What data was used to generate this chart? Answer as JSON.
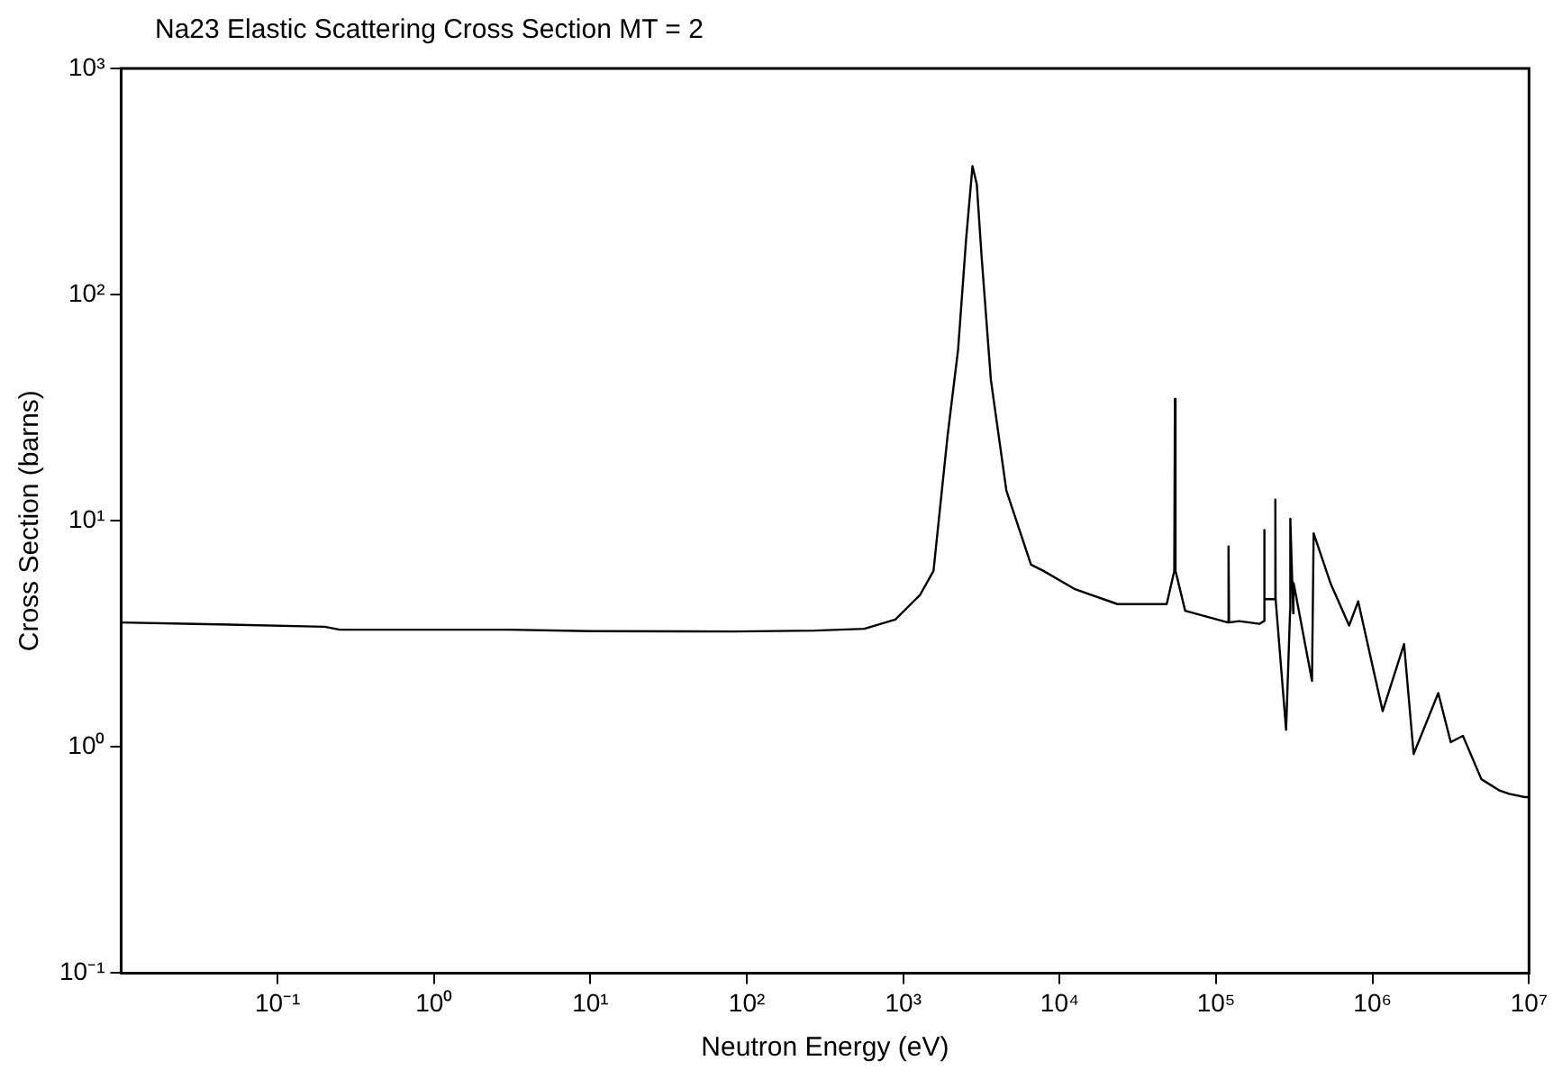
{
  "chart_data": {
    "type": "line",
    "title": "Na23 Elastic Scattering Cross Section MT = 2",
    "xlabel": "Neutron Energy (eV)",
    "ylabel": "Cross Section (barns)",
    "log": "xy",
    "grid": false,
    "legend": false,
    "marker": "none",
    "line_style": "solid",
    "xlim": [
      0.01,
      10000000
    ],
    "ylim": [
      0.1,
      1000
    ],
    "xticks": [
      {
        "value": 0.1,
        "label": "10⁻¹"
      },
      {
        "value": 1,
        "label": "10⁰"
      },
      {
        "value": 10,
        "label": "10¹"
      },
      {
        "value": 100,
        "label": "10²"
      },
      {
        "value": 1000,
        "label": "10³"
      },
      {
        "value": 10000,
        "label": "10⁴"
      },
      {
        "value": 100000,
        "label": "10⁵"
      },
      {
        "value": 1000000,
        "label": "10⁶"
      },
      {
        "value": 10000000,
        "label": "10⁷"
      }
    ],
    "yticks": [
      {
        "value": 0.1,
        "label": "10⁻¹"
      },
      {
        "value": 1,
        "label": "10⁰"
      },
      {
        "value": 10,
        "label": "10¹"
      },
      {
        "value": 100,
        "label": "10²"
      },
      {
        "value": 1000,
        "label": "10³"
      }
    ],
    "series": [
      {
        "color": "#000000",
        "x": [
          0.01,
          0.03,
          0.2,
          0.25,
          3,
          10,
          84,
          273,
          564,
          889,
          1280,
          1560,
          1920,
          2240,
          2520,
          2770,
          2950,
          3170,
          3630,
          4560,
          6550,
          7870,
          12400,
          23400,
          48300,
          54000,
          54500,
          55000,
          63400,
          119000,
          120000,
          121000,
          140000,
          189000,
          202000,
          203000,
          204000,
          238000,
          239000,
          240000,
          280000,
          297000,
          298000,
          311000,
          312000,
          313000,
          410000,
          420000,
          538000,
          708000,
          809000,
          1160000,
          1590000,
          1830000,
          2630000,
          3160000,
          3780000,
          4960000,
          6520000,
          7470000,
          9380000,
          10000000
        ],
        "values": [
          3.55,
          3.5,
          3.4,
          3.3,
          3.3,
          3.25,
          3.24,
          3.27,
          3.33,
          3.66,
          4.7,
          6.0,
          23.8,
          57,
          175,
          370,
          308,
          146,
          42,
          13.6,
          6.4,
          6.0,
          5.0,
          4.28,
          4.28,
          6.0,
          34.6,
          6.0,
          4.0,
          3.55,
          7.7,
          3.55,
          3.6,
          3.5,
          3.6,
          9.1,
          4.5,
          4.5,
          12.4,
          4.5,
          1.19,
          4.0,
          10.2,
          3.9,
          5.3,
          5.3,
          1.96,
          8.8,
          5.3,
          3.44,
          4.4,
          1.44,
          2.85,
          0.93,
          1.73,
          1.05,
          1.12,
          0.72,
          0.64,
          0.62,
          0.6,
          0.6
        ]
      }
    ]
  }
}
